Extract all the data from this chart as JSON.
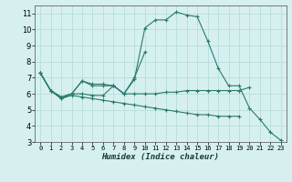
{
  "xlabel": "Humidex (Indice chaleur)",
  "background_color": "#d6f0f0",
  "grid_color": "#b8dcdc",
  "line_color": "#2a7a6a",
  "xlim": [
    -0.5,
    23.5
  ],
  "ylim": [
    3,
    11.5
  ],
  "yticks": [
    3,
    4,
    5,
    6,
    7,
    8,
    9,
    10,
    11
  ],
  "xticks": [
    0,
    1,
    2,
    3,
    4,
    5,
    6,
    7,
    8,
    9,
    10,
    11,
    12,
    13,
    14,
    15,
    16,
    17,
    18,
    19,
    20,
    21,
    22,
    23
  ],
  "series": [
    [
      7.3,
      6.2,
      5.8,
      6.0,
      6.8,
      6.6,
      6.6,
      6.5,
      6.0,
      6.9,
      10.1,
      10.6,
      10.6,
      11.1,
      10.9,
      10.8,
      9.3,
      7.6,
      6.5,
      6.5,
      5.1,
      4.4,
      3.6,
      3.1
    ],
    [
      7.3,
      6.2,
      5.7,
      6.0,
      6.0,
      5.9,
      5.9,
      6.5,
      6.0,
      6.0,
      6.0,
      6.0,
      6.1,
      6.1,
      6.2,
      6.2,
      6.2,
      6.2,
      6.2,
      6.2,
      6.4,
      null,
      null,
      null
    ],
    [
      7.3,
      6.2,
      5.7,
      5.9,
      5.8,
      5.7,
      5.6,
      5.5,
      5.4,
      5.3,
      5.2,
      5.1,
      5.0,
      4.9,
      4.8,
      4.7,
      4.7,
      4.6,
      4.6,
      4.6,
      null,
      null,
      null,
      null
    ],
    [
      7.3,
      6.2,
      5.8,
      6.0,
      6.8,
      6.5,
      6.5,
      6.5,
      6.0,
      7.0,
      8.6,
      null,
      null,
      null,
      null,
      null,
      null,
      null,
      null,
      null,
      null,
      null,
      null,
      null
    ]
  ]
}
